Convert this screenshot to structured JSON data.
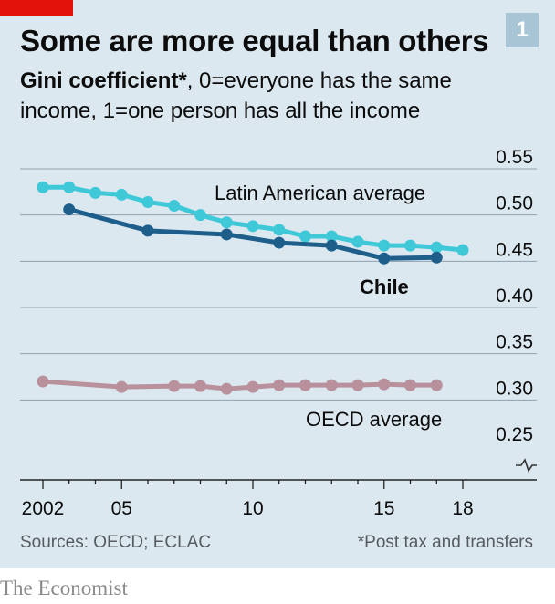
{
  "header": {
    "title": "Some are more equal than others",
    "chart_number": "1",
    "subtitle_bold": "Gini coefficient*",
    "subtitle_rest": ", 0=everyone has the same income, 1=one person has all the income"
  },
  "footer": {
    "sources": "Sources: OECD; ECLAC",
    "note": "*Post tax and transfers",
    "brand": "The Economist"
  },
  "colors": {
    "latin_america": "#3ec8d8",
    "chile": "#1d5f8a",
    "oecd": "#b8919c",
    "grid": "#8fa1ad",
    "text": "#0c0c0c"
  },
  "chart_data": {
    "type": "line",
    "title": "Some are more equal than others",
    "subtitle": "Gini coefficient*, 0=everyone has the same income, 1=one person has all the income",
    "xlim": [
      2002,
      2018
    ],
    "ylim": [
      0.25,
      0.55
    ],
    "x_ticks": [
      2002,
      2005,
      2010,
      2015,
      2018
    ],
    "x_tick_labels": [
      "2002",
      "05",
      "10",
      "15",
      "18"
    ],
    "y_ticks": [
      0.25,
      0.3,
      0.35,
      0.4,
      0.45,
      0.5,
      0.55
    ],
    "y_tick_labels": [
      "0.25",
      "0.30",
      "0.35",
      "0.40",
      "0.45",
      "0.50",
      "0.55"
    ],
    "y_axis_position": "right",
    "y_axis_break": true,
    "grid": true,
    "legend": "inline labels",
    "series": [
      {
        "name": "Latin American average",
        "color_key": "latin_america",
        "label_bold": false,
        "x": [
          2002,
          2003,
          2004,
          2005,
          2006,
          2007,
          2008,
          2009,
          2010,
          2011,
          2012,
          2013,
          2014,
          2015,
          2016,
          2017,
          2018
        ],
        "y": [
          0.53,
          0.53,
          0.524,
          0.522,
          0.514,
          0.51,
          0.5,
          0.492,
          0.488,
          0.484,
          0.477,
          0.477,
          0.471,
          0.467,
          0.467,
          0.465,
          0.462
        ]
      },
      {
        "name": "Chile",
        "color_key": "chile",
        "label_bold": true,
        "x": [
          2003,
          2006,
          2009,
          2011,
          2013,
          2015,
          2017
        ],
        "y": [
          0.506,
          0.483,
          0.479,
          0.47,
          0.467,
          0.453,
          0.454
        ]
      },
      {
        "name": "OECD average",
        "color_key": "oecd",
        "label_bold": false,
        "x": [
          2002,
          2005,
          2007,
          2008,
          2009,
          2010,
          2011,
          2012,
          2013,
          2014,
          2015,
          2016,
          2017
        ],
        "y": [
          0.32,
          0.314,
          0.315,
          0.315,
          0.312,
          0.314,
          0.316,
          0.316,
          0.316,
          0.316,
          0.317,
          0.316,
          0.316
        ]
      }
    ]
  }
}
